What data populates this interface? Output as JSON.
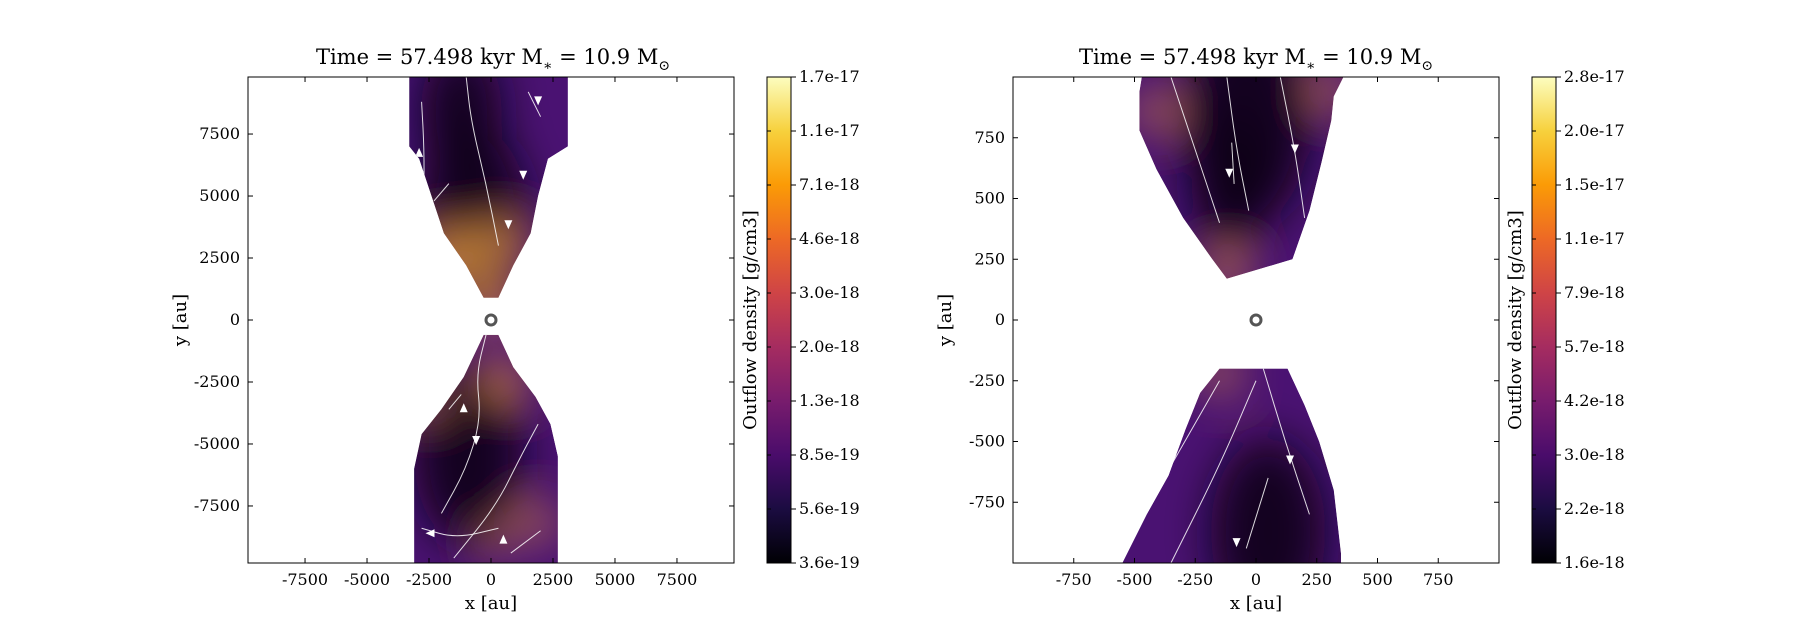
{
  "colormap": [
    "#000004",
    "#1b0c41",
    "#4a0c6b",
    "#781c6d",
    "#a52c60",
    "#cf4446",
    "#ed6925",
    "#fb9b06",
    "#f7d13d",
    "#fcfdbf"
  ],
  "chart_data": [
    {
      "type": "heatmap",
      "title": "Time = 57.498 kyr    M",
      "title_sub": "∗",
      "title_mid": " = 10.9 M",
      "title_sub2": "⊙",
      "xlabel": "x [au]",
      "ylabel": "y [au]",
      "xlim": [
        -9800,
        9800
      ],
      "ylim": [
        -9800,
        9800
      ],
      "xticks": [
        -7500,
        -5000,
        -2500,
        0,
        2500,
        5000,
        7500
      ],
      "yticks": [
        -7500,
        -5000,
        -2500,
        0,
        2500,
        5000,
        7500
      ],
      "colorbar": {
        "label": "Outflow density [g/cm3]",
        "ticks": [
          "3.6e-19",
          "5.6e-19",
          "8.5e-19",
          "1.3e-18",
          "2.0e-18",
          "3.0e-18",
          "4.6e-18",
          "7.1e-18",
          "1.1e-17",
          "1.7e-17"
        ]
      },
      "region": {
        "shape": "hourglass",
        "upper": [
          [
            -3300,
            9800
          ],
          [
            3100,
            9800
          ],
          [
            3100,
            7000
          ],
          [
            2300,
            6500
          ],
          [
            1900,
            5000
          ],
          [
            1600,
            3500
          ],
          [
            900,
            2200
          ],
          [
            300,
            900
          ],
          [
            -300,
            900
          ],
          [
            -1000,
            2200
          ],
          [
            -1900,
            3500
          ],
          [
            -2400,
            5000
          ],
          [
            -2900,
            6500
          ],
          [
            -3300,
            7000
          ]
        ],
        "lower": [
          [
            -300,
            -600
          ],
          [
            300,
            -600
          ],
          [
            900,
            -1900
          ],
          [
            1800,
            -3100
          ],
          [
            2400,
            -4200
          ],
          [
            2700,
            -5500
          ],
          [
            2700,
            -9800
          ],
          [
            -3100,
            -9800
          ],
          [
            -3100,
            -6000
          ],
          [
            -2800,
            -4600
          ],
          [
            -2000,
            -3600
          ],
          [
            -1100,
            -2300
          ]
        ]
      },
      "hotspots": [
        [
          0,
          600,
          -2000
        ],
        [
          -1700,
          2500,
          -2500
        ],
        [
          400,
          3000,
          -2000
        ],
        [
          600,
          -2400,
          -1700
        ],
        [
          -2500,
          -3300,
          -1000
        ],
        [
          300,
          -9000,
          -1000
        ],
        [
          1900,
          -8200,
          -1500
        ]
      ],
      "darkspots": [
        [
          -700,
          4200,
          -4000
        ],
        [
          -900,
          -5500,
          -4000
        ],
        [
          -1200,
          8400,
          -3000
        ]
      ],
      "streamlines": [
        [
          [
            -2800,
            8800
          ],
          [
            -2700,
            7000
          ],
          [
            -2700,
            5000
          ]
        ],
        [
          [
            -1000,
            9800
          ],
          [
            -800,
            8000
          ],
          [
            -200,
            5500
          ],
          [
            300,
            3000
          ]
        ],
        [
          [
            1500,
            9200
          ],
          [
            2000,
            8200
          ]
        ],
        [
          [
            -2300,
            4800
          ],
          [
            -1700,
            5500
          ]
        ],
        [
          [
            -200,
            -600
          ],
          [
            -600,
            -2200
          ],
          [
            -400,
            -4000
          ],
          [
            -1000,
            -6000
          ],
          [
            -2000,
            -7800
          ]
        ],
        [
          [
            -1200,
            -3000
          ],
          [
            -1700,
            -3600
          ]
        ],
        [
          [
            -2800,
            -8400
          ],
          [
            -1400,
            -8800
          ],
          [
            300,
            -8400
          ]
        ],
        [
          [
            -1500,
            -9600
          ],
          [
            200,
            -7500
          ],
          [
            1200,
            -5500
          ],
          [
            1900,
            -4200
          ]
        ],
        [
          [
            800,
            -9400
          ],
          [
            2000,
            -8500
          ]
        ]
      ],
      "arrows": [
        [
          1900,
          8900,
          -1
        ],
        [
          1300,
          5900,
          -1
        ],
        [
          700,
          3900,
          -1
        ],
        [
          -2600,
          5000,
          1
        ],
        [
          -2900,
          6700,
          1
        ],
        [
          -600,
          -4800,
          -1
        ],
        [
          -1100,
          -3600,
          1
        ],
        [
          -2400,
          -8600,
          0
        ],
        [
          500,
          -8900,
          1
        ]
      ]
    },
    {
      "type": "heatmap",
      "title": "Time = 57.498 kyr    M",
      "title_sub": "∗",
      "title_mid": " = 10.9 M",
      "title_sub2": "⊙",
      "xlabel": "x [au]",
      "ylabel": "y [au]",
      "xlim": [
        -1000,
        1000
      ],
      "ylim": [
        -1000,
        1000
      ],
      "xticks": [
        -750,
        -500,
        -250,
        0,
        250,
        500,
        750
      ],
      "yticks": [
        -750,
        -500,
        -250,
        0,
        250,
        500,
        750
      ],
      "colorbar": {
        "label": "Outflow density [g/cm3]",
        "ticks": [
          "1.6e-18",
          "2.2e-18",
          "3.0e-18",
          "4.2e-18",
          "5.7e-18",
          "7.9e-18",
          "1.1e-17",
          "1.5e-17",
          "2.0e-17",
          "2.8e-17"
        ]
      },
      "region": {
        "shape": "lobes",
        "upper": [
          [
            -470,
            1000
          ],
          [
            360,
            1000
          ],
          [
            320,
            920
          ],
          [
            310,
            820
          ],
          [
            270,
            650
          ],
          [
            220,
            450
          ],
          [
            150,
            250
          ],
          [
            -120,
            170
          ],
          [
            -180,
            250
          ],
          [
            -300,
            420
          ],
          [
            -410,
            620
          ],
          [
            -480,
            780
          ],
          [
            -480,
            940
          ]
        ],
        "lower": [
          [
            -150,
            -200
          ],
          [
            130,
            -200
          ],
          [
            200,
            -350
          ],
          [
            260,
            -500
          ],
          [
            320,
            -700
          ],
          [
            350,
            -960
          ],
          [
            350,
            -1000
          ],
          [
            -550,
            -1000
          ],
          [
            -450,
            -800
          ],
          [
            -360,
            -640
          ],
          [
            -290,
            -450
          ],
          [
            -230,
            -300
          ]
        ]
      },
      "hotspots": [
        [
          -120,
          190,
          -170
        ],
        [
          -420,
          860,
          -160
        ],
        [
          -150,
          -220,
          -160
        ],
        [
          320,
          950,
          -150
        ]
      ],
      "darkspots": [
        [
          -40,
          820,
          -480
        ],
        [
          50,
          -870,
          -430
        ],
        [
          -100,
          560,
          -300
        ]
      ],
      "streamlines": [
        [
          [
            -350,
            1000
          ],
          [
            -250,
            700
          ],
          [
            -150,
            400
          ]
        ],
        [
          [
            -120,
            1000
          ],
          [
            -80,
            700
          ],
          [
            -30,
            450
          ]
        ],
        [
          [
            100,
            1000
          ],
          [
            160,
            700
          ],
          [
            200,
            420
          ]
        ],
        [
          [
            -100,
            730
          ],
          [
            -90,
            560
          ]
        ],
        [
          [
            -580,
            -1000
          ],
          [
            -350,
            -600
          ],
          [
            -150,
            -250
          ]
        ],
        [
          [
            -350,
            -1000
          ],
          [
            -150,
            -600
          ],
          [
            0,
            -250
          ]
        ],
        [
          [
            50,
            -650
          ],
          [
            -40,
            -940
          ]
        ],
        [
          [
            30,
            -200
          ],
          [
            120,
            -500
          ],
          [
            220,
            -800
          ]
        ]
      ],
      "arrows": [
        [
          -110,
          610,
          -1
        ],
        [
          160,
          710,
          -1
        ],
        [
          -80,
          -910,
          -1
        ],
        [
          140,
          -570,
          -1
        ]
      ]
    }
  ]
}
